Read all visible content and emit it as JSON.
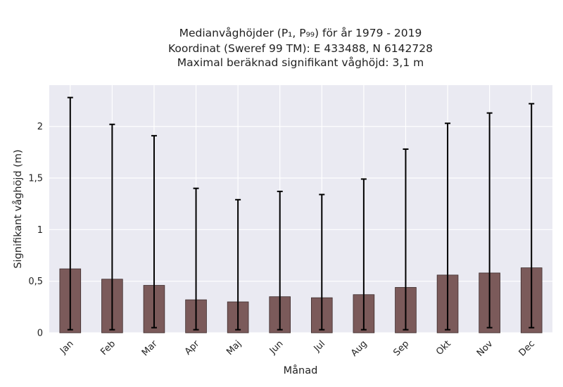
{
  "chart_data": {
    "type": "bar",
    "title_lines": [
      "Medianvåghöjder (P₁, P₉₉) för år 1979 - 2019",
      "Koordinat (Sweref 99 TM): E 433488, N 6142728",
      "Maximal beräknad signifikant våghöjd: 3,1 m"
    ],
    "xlabel": "Månad",
    "ylabel": "Signifikant våghöjd (m)",
    "categories": [
      "Jan",
      "Feb",
      "Mar",
      "Apr",
      "Maj",
      "Jun",
      "Jul",
      "Aug",
      "Sep",
      "Okt",
      "Nov",
      "Dec"
    ],
    "values": [
      0.62,
      0.52,
      0.46,
      0.32,
      0.3,
      0.35,
      0.34,
      0.37,
      0.44,
      0.56,
      0.58,
      0.63
    ],
    "err_low": [
      0.03,
      0.03,
      0.05,
      0.03,
      0.03,
      0.03,
      0.03,
      0.03,
      0.03,
      0.03,
      0.05,
      0.05
    ],
    "err_high": [
      2.28,
      2.02,
      1.91,
      1.4,
      1.29,
      1.37,
      1.34,
      1.49,
      1.78,
      2.03,
      2.13,
      2.22
    ],
    "ylim": [
      0,
      2.4
    ],
    "yticks": [
      0,
      0.5,
      1,
      1.5,
      2
    ],
    "ytick_labels": [
      "0",
      "0,5",
      "1",
      "1,5",
      "2"
    ],
    "grid": true,
    "bar_color": "#7b5a5a",
    "background_color": "#eaeaf2",
    "grid_color": "#ffffff",
    "error_color": "#000000"
  }
}
